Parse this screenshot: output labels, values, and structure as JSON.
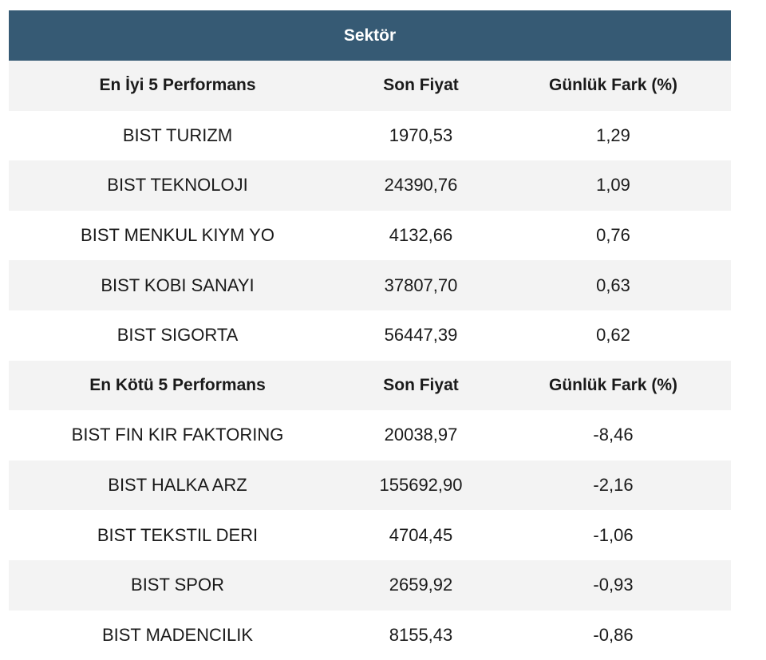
{
  "title": "Sektör",
  "best": {
    "header": {
      "name": "En İyi 5 Performans",
      "price": "Son Fiyat",
      "change": "Günlük Fark (%)"
    },
    "rows": [
      {
        "name": "BIST TURIZM",
        "price": "1970,53",
        "change": "1,29"
      },
      {
        "name": "BIST TEKNOLOJI",
        "price": "24390,76",
        "change": "1,09"
      },
      {
        "name": "BIST MENKUL KIYM YO",
        "price": "4132,66",
        "change": "0,76"
      },
      {
        "name": "BIST KOBI SANAYI",
        "price": "37807,70",
        "change": "0,63"
      },
      {
        "name": "BIST SIGORTA",
        "price": "56447,39",
        "change": "0,62"
      }
    ]
  },
  "worst": {
    "header": {
      "name": "En Kötü 5 Performans",
      "price": "Son Fiyat",
      "change": "Günlük Fark (%)"
    },
    "rows": [
      {
        "name": "BIST FIN KIR FAKTORING",
        "price": "20038,97",
        "change": "-8,46"
      },
      {
        "name": "BIST HALKA ARZ",
        "price": "155692,90",
        "change": "-2,16"
      },
      {
        "name": "BIST TEKSTIL DERI",
        "price": "4704,45",
        "change": "-1,06"
      },
      {
        "name": "BIST SPOR",
        "price": "2659,92",
        "change": "-0,93"
      },
      {
        "name": "BIST MADENCILIK",
        "price": "8155,43",
        "change": "-0,86"
      }
    ]
  }
}
